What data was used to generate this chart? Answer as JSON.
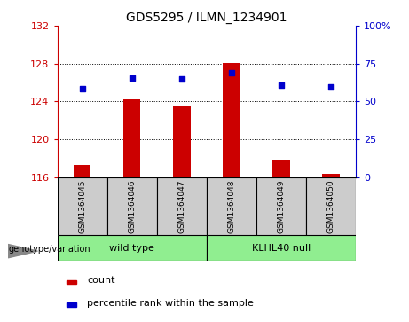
{
  "title": "GDS5295 / ILMN_1234901",
  "samples": [
    "GSM1364045",
    "GSM1364046",
    "GSM1364047",
    "GSM1364048",
    "GSM1364049",
    "GSM1364050"
  ],
  "counts": [
    117.3,
    124.2,
    123.6,
    128.1,
    117.8,
    116.3
  ],
  "percentile_ranks": [
    125.3,
    126.5,
    126.4,
    127.0,
    125.7,
    125.5
  ],
  "bar_color": "#cc0000",
  "dot_color": "#0000cc",
  "ylim_left": [
    116,
    132
  ],
  "ylim_right": [
    0,
    100
  ],
  "yticks_left": [
    116,
    120,
    124,
    128,
    132
  ],
  "yticks_right": [
    0,
    25,
    50,
    75,
    100
  ],
  "group1_label": "wild type",
  "group2_label": "KLHL40 null",
  "group1_indices": [
    0,
    1,
    2
  ],
  "group2_indices": [
    3,
    4,
    5
  ],
  "group1_color": "#90ee90",
  "group2_color": "#90ee90",
  "genotype_label": "genotype/variation",
  "legend_count_label": "count",
  "legend_pct_label": "percentile rank within the sample",
  "background_color": "#ffffff",
  "sample_box_color": "#cccccc",
  "grid_dotted_color": "#000000",
  "bar_width": 0.35
}
